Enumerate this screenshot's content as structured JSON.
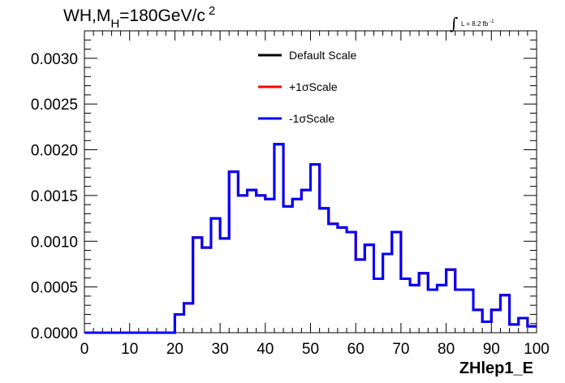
{
  "chart_data": {
    "type": "line",
    "title_main": "WH,M",
    "title_sub": "H",
    "title_rest": "=180GeV/c",
    "title_sup": "2",
    "lumi_prefix": "L = 8.2 fb",
    "lumi_sup": "-1",
    "xlabel": "ZHlep1_E",
    "ylabel": "",
    "xlim": [
      0,
      100
    ],
    "ylim": [
      0,
      0.0033
    ],
    "x_ticks": [
      "0",
      "10",
      "20",
      "30",
      "40",
      "50",
      "60",
      "70",
      "80",
      "90",
      "100"
    ],
    "y_ticks": [
      "0.0000",
      "0.0005",
      "0.0010",
      "0.0015",
      "0.0020",
      "0.0025",
      "0.0030"
    ],
    "legend_position": "top-center",
    "bin_width": 2,
    "series": [
      {
        "name": "Default Scale",
        "color": "#000000",
        "values": [
          0,
          0,
          0,
          0,
          0,
          0,
          0,
          0,
          0,
          0,
          0.0002,
          0.00032,
          0.00104,
          0.00093,
          0.00125,
          0.00103,
          0.00176,
          0.0015,
          0.00156,
          0.0015,
          0.00146,
          0.00206,
          0.00138,
          0.00146,
          0.00156,
          0.00184,
          0.00136,
          0.00119,
          0.00115,
          0.0011,
          0.0008,
          0.00096,
          0.00059,
          0.00086,
          0.0011,
          0.00059,
          0.00052,
          0.00065,
          0.00047,
          0.00052,
          0.00069,
          0.00047,
          0.00047,
          0.00025,
          0.00012,
          0.00025,
          0.00041,
          9e-05,
          0.00016,
          7e-05
        ]
      },
      {
        "name": "+1σScale",
        "color": "#ff0000",
        "values": [
          0,
          0,
          0,
          0,
          0,
          0,
          0,
          0,
          0,
          0,
          0.0002,
          0.00032,
          0.00104,
          0.00093,
          0.00125,
          0.00103,
          0.00176,
          0.0015,
          0.00156,
          0.0015,
          0.00146,
          0.00206,
          0.00138,
          0.00146,
          0.00156,
          0.00184,
          0.00136,
          0.00119,
          0.00115,
          0.0011,
          0.0008,
          0.00096,
          0.00059,
          0.00086,
          0.0011,
          0.00059,
          0.00052,
          0.00065,
          0.00047,
          0.00052,
          0.00069,
          0.00047,
          0.00047,
          0.00025,
          0.00012,
          0.00025,
          0.00041,
          9e-05,
          0.00016,
          7e-05
        ]
      },
      {
        "name": "-1σScale",
        "color": "#0000ff",
        "values": [
          0,
          0,
          0,
          0,
          0,
          0,
          0,
          0,
          0,
          0,
          0.0002,
          0.00032,
          0.00104,
          0.00093,
          0.00125,
          0.00103,
          0.00176,
          0.0015,
          0.00156,
          0.0015,
          0.00146,
          0.00206,
          0.00138,
          0.00146,
          0.00156,
          0.00184,
          0.00136,
          0.00119,
          0.00115,
          0.0011,
          0.0008,
          0.00096,
          0.00059,
          0.00086,
          0.0011,
          0.00059,
          0.00052,
          0.00065,
          0.00047,
          0.00052,
          0.00069,
          0.00047,
          0.00047,
          0.00025,
          0.00012,
          0.00025,
          0.00041,
          9e-05,
          0.00016,
          7e-05
        ]
      }
    ]
  }
}
